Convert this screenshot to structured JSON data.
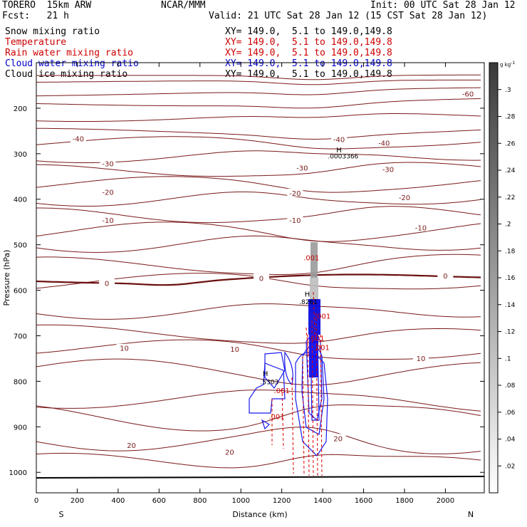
{
  "header": {
    "model": "TORERO  15km ARW",
    "org": "NCAR/MMM",
    "init": "Init: 00 UTC Sat 28 Jan 12",
    "fcst": "Fcst:   21 h",
    "valid": "Valid: 21 UTC Sat 28 Jan 12 (15 CST Sat 28 Jan 12)",
    "fields": [
      {
        "name": "Snow mixing ratio",
        "xy": "XY= 149.0,  5.1 to 149.0,149.8",
        "color": "#000000",
        "xy_color": "#000000"
      },
      {
        "name": "Temperature",
        "xy": "XY= 149.0,  5.1 to 149.0,149.8",
        "color": "#cc0000",
        "xy_color": "#cc0000"
      },
      {
        "name": "Rain water mixing ratio",
        "xy": "XY= 149.0,  5.1 to 149.0,149.8",
        "color": "#cc0000",
        "xy_color": "#cc0000"
      },
      {
        "name": "Cloud water mixing ratio",
        "xy": "XY= 149.0,  5.1 to 149.0,149.8",
        "color": "#0000cc",
        "xy_color": "#0000cc"
      },
      {
        "name": "Cloud ice mixing ratio",
        "xy": "XY= 149.0,  5.1 to 149.0,149.8",
        "color": "#000000",
        "xy_color": "#000000"
      }
    ]
  },
  "chart_data": {
    "type": "contour",
    "xlabel": "Distance (km)",
    "ylabel": "Pressure (hPa)",
    "xlim": [
      0,
      2190
    ],
    "ylim": [
      1045,
      100
    ],
    "x_ticks": [
      0,
      200,
      400,
      600,
      800,
      1000,
      1200,
      1400,
      1600,
      1800,
      2000
    ],
    "y_ticks": [
      200,
      300,
      400,
      500,
      600,
      700,
      800,
      900,
      1000
    ],
    "x_ends": {
      "left": "S",
      "right": "N"
    },
    "colorbar": {
      "unit": "g kg",
      "unit_exp": "-1",
      "ticks": [
        ".02",
        ".04",
        ".06",
        ".08",
        ".1",
        ".12",
        ".14",
        ".16",
        ".18",
        ".2",
        ".22",
        ".24",
        ".26",
        ".28",
        ".3"
      ],
      "min": 0,
      "max": 0.32
    },
    "temperature_contours": [
      {
        "label": "-60",
        "x": 2110,
        "p": 168
      },
      {
        "label": "-40",
        "x": 205,
        "p": 267
      },
      {
        "label": "-40",
        "x": 1480,
        "p": 268
      },
      {
        "label": "-40",
        "x": 1700,
        "p": 276
      },
      {
        "label": "-30",
        "x": 350,
        "p": 321
      },
      {
        "label": "-30",
        "x": 1300,
        "p": 331
      },
      {
        "label": "-30",
        "x": 1720,
        "p": 334
      },
      {
        "label": "-20",
        "x": 350,
        "p": 384
      },
      {
        "label": "-20",
        "x": 1265,
        "p": 386
      },
      {
        "label": "-20",
        "x": 1800,
        "p": 396
      },
      {
        "label": "-10",
        "x": 350,
        "p": 446
      },
      {
        "label": "-10",
        "x": 1265,
        "p": 446
      },
      {
        "label": "-10",
        "x": 1880,
        "p": 462
      },
      {
        "label": "0",
        "x": 345,
        "p": 584
      },
      {
        "label": "0",
        "x": 1100,
        "p": 573
      },
      {
        "label": "0",
        "x": 2000,
        "p": 568
      },
      {
        "label": "10",
        "x": 430,
        "p": 727
      },
      {
        "label": "10",
        "x": 970,
        "p": 729
      },
      {
        "label": "10",
        "x": 1880,
        "p": 749
      },
      {
        "label": "20",
        "x": 465,
        "p": 940
      },
      {
        "label": "20",
        "x": 945,
        "p": 955
      },
      {
        "label": "20",
        "x": 1475,
        "p": 925
      }
    ],
    "annotations": [
      {
        "text": "H",
        "x": 1480,
        "p": 291
      },
      {
        "text": ".0003366",
        "x": 1500,
        "p": 304
      },
      {
        "text": ".001",
        "x": 1345,
        "p": 528
      },
      {
        "text": "H",
        "x": 1325,
        "p": 608
      },
      {
        "text": ".8261",
        "x": 1330,
        "p": 624
      },
      {
        "text": ".001",
        "x": 1400,
        "p": 656
      },
      {
        "text": ".001",
        "x": 1370,
        "p": 705
      },
      {
        "text": ".001",
        "x": 1395,
        "p": 725
      },
      {
        "text": "H",
        "x": 1120,
        "p": 782
      },
      {
        "text": ".5303",
        "x": 1140,
        "p": 800
      },
      {
        "text": ".001",
        "x": 1200,
        "p": 820
      },
      {
        "text": ".001",
        "x": 1175,
        "p": 877
      }
    ]
  }
}
